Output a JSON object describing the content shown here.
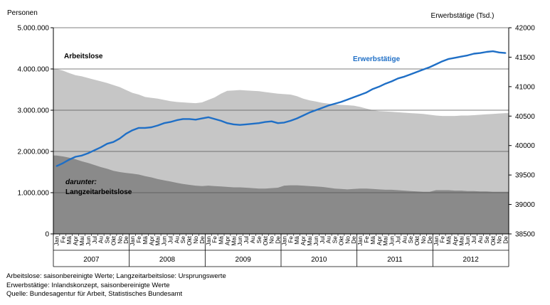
{
  "chart_data": {
    "type": "area",
    "left_axis_title": "Personen",
    "right_axis_title": "Erwerbstätige (Tsd.)",
    "left_ticks": [
      "0",
      "1.000.000",
      "2.000.000",
      "3.000.000",
      "4.000.000",
      "5.000.000"
    ],
    "right_ticks": [
      "38500",
      "39000",
      "39500",
      "40000",
      "40500",
      "41000",
      "41500",
      "42000"
    ],
    "ylim_left": [
      0,
      5000000
    ],
    "ylim_right": [
      38500,
      42000
    ],
    "grid": true,
    "months": [
      "Jan",
      "Fe",
      "Mä",
      "Apr",
      "Mai",
      "Jun",
      "Jul",
      "Au",
      "Se",
      "Okt",
      "No",
      "De"
    ],
    "years": [
      "2007",
      "2008",
      "2009",
      "2010",
      "2011",
      "2012"
    ],
    "series": [
      {
        "name": "Arbeitslose",
        "axis": "left",
        "color": "#c6c6c6",
        "values": [
          4000000,
          3960000,
          3900000,
          3850000,
          3820000,
          3780000,
          3740000,
          3700000,
          3660000,
          3610000,
          3560000,
          3490000,
          3420000,
          3380000,
          3320000,
          3300000,
          3280000,
          3250000,
          3220000,
          3200000,
          3190000,
          3180000,
          3170000,
          3190000,
          3250000,
          3310000,
          3400000,
          3470000,
          3480000,
          3490000,
          3480000,
          3470000,
          3460000,
          3440000,
          3420000,
          3400000,
          3390000,
          3380000,
          3340000,
          3280000,
          3240000,
          3210000,
          3180000,
          3160000,
          3140000,
          3130000,
          3120000,
          3110000,
          3080000,
          3040000,
          3000000,
          2980000,
          2970000,
          2960000,
          2950000,
          2940000,
          2930000,
          2920000,
          2910000,
          2890000,
          2870000,
          2860000,
          2860000,
          2860000,
          2870000,
          2870000,
          2880000,
          2890000,
          2900000,
          2910000,
          2920000,
          2930000
        ]
      },
      {
        "name": "darunter: Langzeitarbeitslose",
        "axis": "left",
        "color": "#8a8a8a",
        "values": [
          1900000,
          1880000,
          1850000,
          1810000,
          1760000,
          1720000,
          1670000,
          1620000,
          1580000,
          1530000,
          1500000,
          1480000,
          1460000,
          1440000,
          1400000,
          1370000,
          1330000,
          1300000,
          1270000,
          1240000,
          1210000,
          1190000,
          1170000,
          1160000,
          1170000,
          1160000,
          1150000,
          1140000,
          1130000,
          1130000,
          1120000,
          1110000,
          1100000,
          1100000,
          1110000,
          1120000,
          1170000,
          1180000,
          1180000,
          1170000,
          1160000,
          1150000,
          1140000,
          1120000,
          1100000,
          1090000,
          1080000,
          1090000,
          1100000,
          1100000,
          1090000,
          1080000,
          1070000,
          1070000,
          1060000,
          1050000,
          1040000,
          1030000,
          1020000,
          1020000,
          1060000,
          1060000,
          1060000,
          1050000,
          1050000,
          1040000,
          1040000,
          1030000,
          1030000,
          1020000,
          1020000,
          1020000
        ]
      },
      {
        "name": "Erwerbstätige",
        "axis": "right",
        "type": "line",
        "color": "#1f6fc6",
        "values": [
          39650,
          39700,
          39760,
          39810,
          39830,
          39870,
          39920,
          39970,
          40030,
          40060,
          40120,
          40200,
          40260,
          40300,
          40300,
          40310,
          40340,
          40380,
          40400,
          40430,
          40450,
          40450,
          40440,
          40460,
          40480,
          40450,
          40420,
          40380,
          40360,
          40350,
          40360,
          40370,
          40380,
          40400,
          40410,
          40380,
          40390,
          40420,
          40460,
          40510,
          40560,
          40600,
          40640,
          40680,
          40710,
          40740,
          40780,
          40820,
          40860,
          40900,
          40960,
          41000,
          41050,
          41090,
          41140,
          41170,
          41210,
          41250,
          41290,
          41330,
          41380,
          41430,
          41470,
          41490,
          41510,
          41530,
          41560,
          41570,
          41590,
          41600,
          41580,
          41570
        ]
      }
    ],
    "annotations": {
      "arbeitslose": "Arbeitslose",
      "erwerbstaetige": "Erwerbstätige",
      "langzeit_line1": "darunter:",
      "langzeit_line2": "Langzeitarbeitslose"
    }
  },
  "notes": {
    "line1": "Arbeitslose: saisonbereinigte Werte; Langzeitarbeitslose: Ursprungswerte",
    "line2": "Erwerbstätige: Inlandskonzept, saisonbereinigte Werte",
    "line3": "Quelle: Bundesagentur für Arbeit, Statistisches Bundesamt"
  }
}
